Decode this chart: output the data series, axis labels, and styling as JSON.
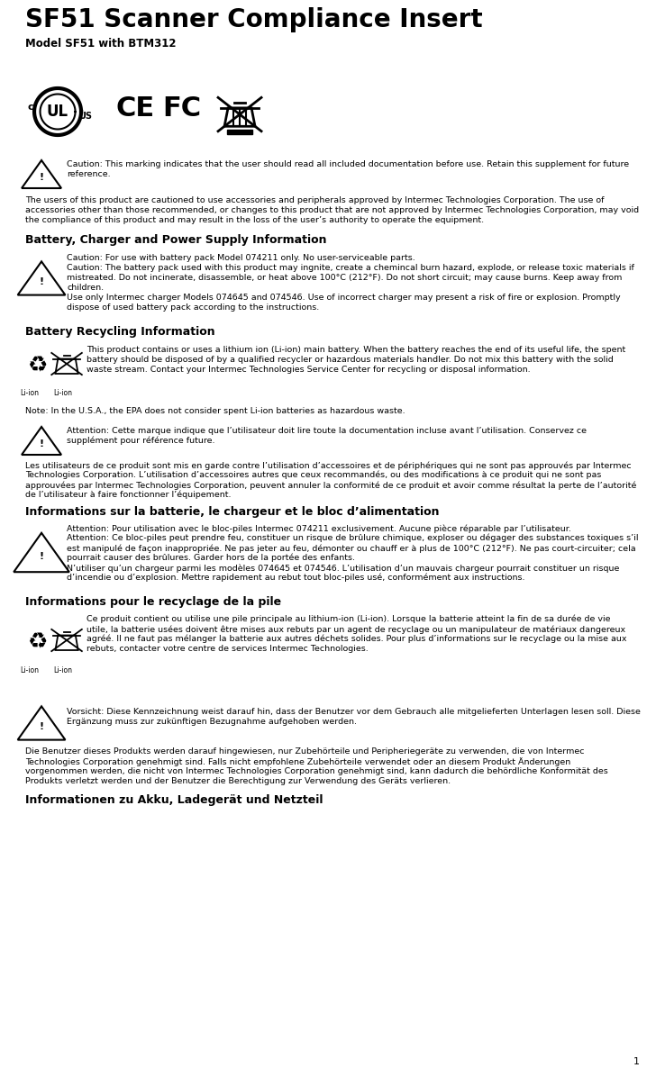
{
  "title": "SF51 Scanner Compliance Insert",
  "subtitle": "Model SF51 with BTM312",
  "bg_color": "#ffffff",
  "text_color": "#000000",
  "title_font_size": 20,
  "subtitle_font_size": 8.5,
  "body_font_size": 6.8,
  "heading_font_size": 9.0,
  "small_font_size": 5.5,
  "page_number": "1",
  "fig_w": 7.38,
  "fig_h": 11.96,
  "dpi": 100,
  "ml": 0.038,
  "mr": 0.962,
  "indent": 0.085
}
